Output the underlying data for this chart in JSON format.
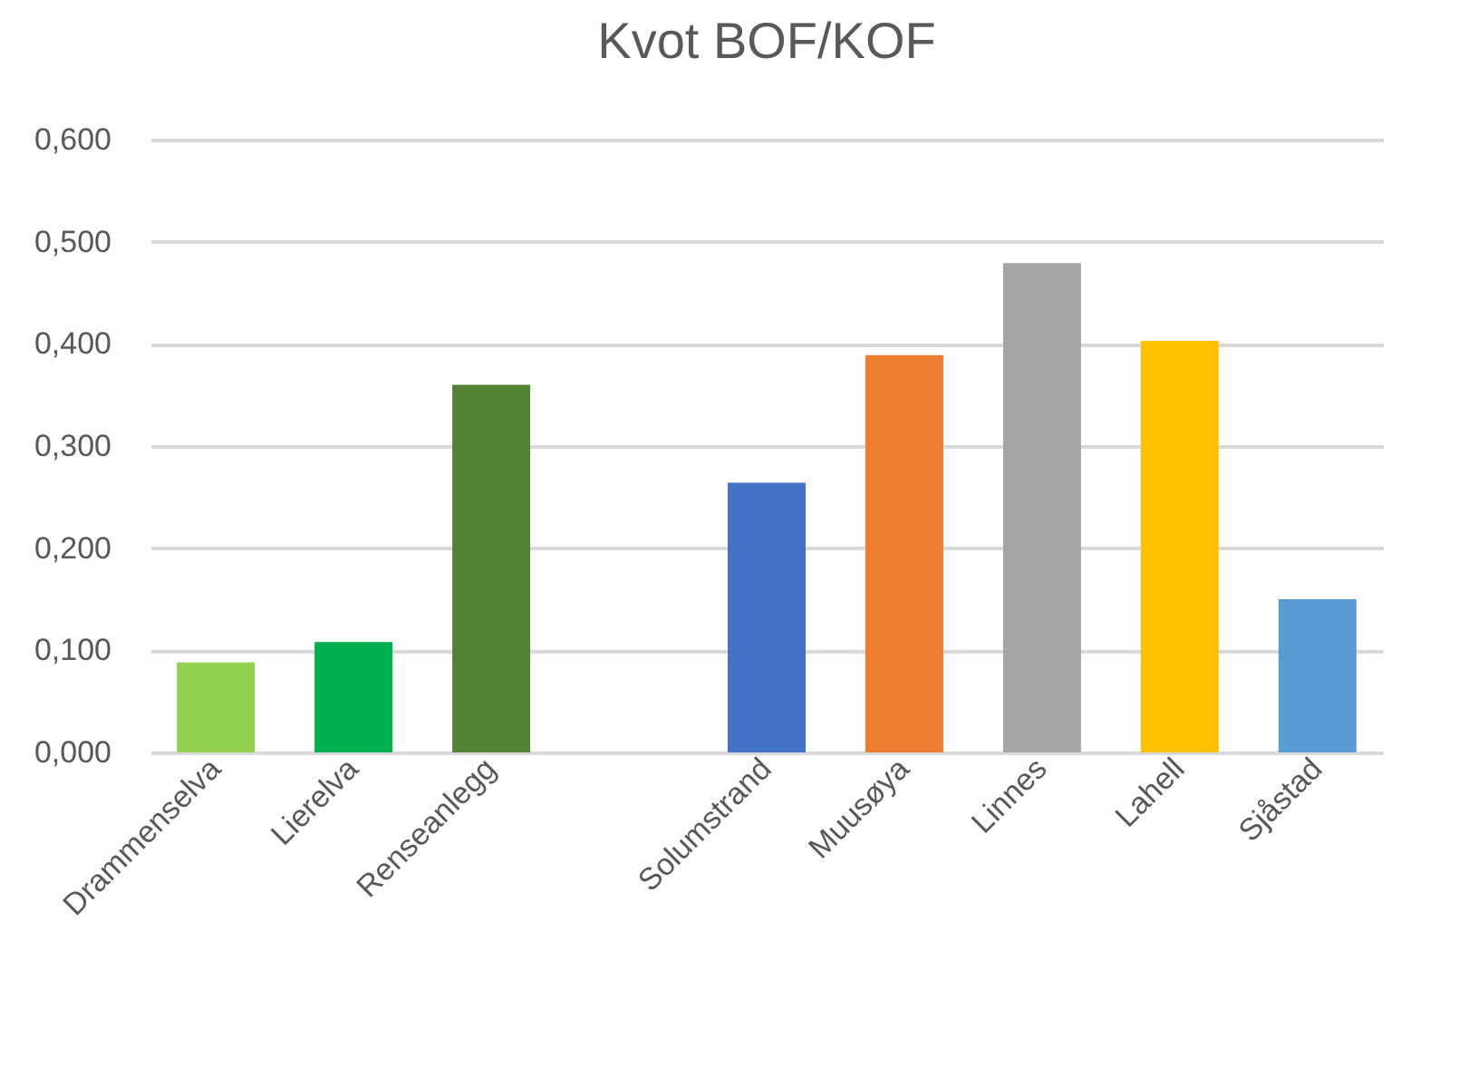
{
  "chart_data": {
    "type": "bar",
    "title": "Kvot BOF/KOF",
    "categories": [
      "Drammenselva",
      "Lierelva",
      "Renseanlegg",
      null,
      "Solumstrand",
      "Muusøya",
      "Linnes",
      "Lahell",
      "Sjåstad"
    ],
    "values": [
      0.088,
      0.108,
      0.36,
      null,
      0.264,
      0.389,
      0.479,
      0.403,
      0.15
    ],
    "colors": [
      "#92d050",
      "#00b050",
      "#548235",
      null,
      "#4472c4",
      "#ed7d31",
      "#a5a5a5",
      "#ffc000",
      "#5b9bd5"
    ],
    "ylim": [
      0,
      0.6
    ],
    "yticks": [
      {
        "value": 0,
        "label": "0,000"
      },
      {
        "value": 0.1,
        "label": "0,100"
      },
      {
        "value": 0.2,
        "label": "0,200"
      },
      {
        "value": 0.3,
        "label": "0,300"
      },
      {
        "value": 0.4,
        "label": "0,400"
      },
      {
        "value": 0.5,
        "label": "0,500"
      },
      {
        "value": 0.6,
        "label": "0,600"
      }
    ],
    "grid": "y"
  }
}
